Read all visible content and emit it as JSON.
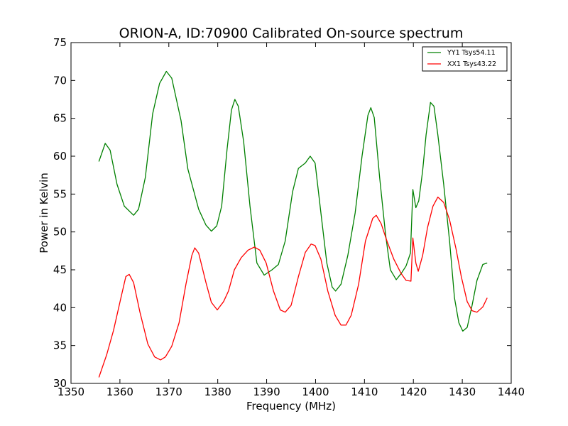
{
  "chart_data": {
    "type": "line",
    "title": "ORION-A, ID:70900 Calibrated On-source spectrum",
    "xlabel": "Frequency (MHz)",
    "ylabel": "Power in Kelvin",
    "xlim": [
      1350,
      1440
    ],
    "ylim": [
      30,
      75
    ],
    "xticks": [
      1350,
      1360,
      1370,
      1380,
      1390,
      1400,
      1410,
      1420,
      1430,
      1440
    ],
    "yticks": [
      30,
      35,
      40,
      45,
      50,
      55,
      60,
      65,
      70,
      75
    ],
    "grid": false,
    "legend_position": "top-right",
    "series": [
      {
        "name": "YY1 Tsys54.11",
        "color": "#008000",
        "points": [
          [
            1355.7,
            59.3
          ],
          [
            1357.0,
            61.7
          ],
          [
            1358.0,
            60.8
          ],
          [
            1359.4,
            56.3
          ],
          [
            1360.9,
            53.4
          ],
          [
            1362.8,
            52.2
          ],
          [
            1363.8,
            53.0
          ],
          [
            1365.2,
            57.2
          ],
          [
            1366.7,
            65.6
          ],
          [
            1368.1,
            69.6
          ],
          [
            1369.5,
            71.2
          ],
          [
            1370.6,
            70.3
          ],
          [
            1372.5,
            64.7
          ],
          [
            1373.9,
            58.3
          ],
          [
            1376.1,
            53.0
          ],
          [
            1377.6,
            50.9
          ],
          [
            1378.7,
            50.1
          ],
          [
            1379.8,
            50.8
          ],
          [
            1380.8,
            53.4
          ],
          [
            1381.9,
            60.9
          ],
          [
            1382.8,
            66.1
          ],
          [
            1383.5,
            67.5
          ],
          [
            1384.2,
            66.6
          ],
          [
            1385.3,
            61.9
          ],
          [
            1386.6,
            53.4
          ],
          [
            1388.0,
            45.9
          ],
          [
            1389.5,
            44.3
          ],
          [
            1391.1,
            45.0
          ],
          [
            1392.4,
            45.7
          ],
          [
            1393.8,
            48.8
          ],
          [
            1395.3,
            55.3
          ],
          [
            1396.5,
            58.4
          ],
          [
            1397.9,
            59.1
          ],
          [
            1398.9,
            60.0
          ],
          [
            1399.9,
            59.1
          ],
          [
            1401.1,
            52.5
          ],
          [
            1402.3,
            45.9
          ],
          [
            1403.4,
            42.7
          ],
          [
            1404.1,
            42.2
          ],
          [
            1405.2,
            43.1
          ],
          [
            1406.6,
            46.9
          ],
          [
            1408.1,
            52.5
          ],
          [
            1409.5,
            60.0
          ],
          [
            1410.7,
            65.4
          ],
          [
            1411.3,
            66.4
          ],
          [
            1412.0,
            65.1
          ],
          [
            1413.1,
            57.2
          ],
          [
            1414.3,
            49.7
          ],
          [
            1415.3,
            45.0
          ],
          [
            1416.5,
            43.7
          ],
          [
            1417.5,
            44.5
          ],
          [
            1418.5,
            45.5
          ],
          [
            1419.4,
            47.2
          ],
          [
            1419.9,
            55.6
          ],
          [
            1420.5,
            53.2
          ],
          [
            1421.1,
            54.1
          ],
          [
            1421.9,
            58.1
          ],
          [
            1422.6,
            62.8
          ],
          [
            1423.5,
            67.1
          ],
          [
            1424.2,
            66.6
          ],
          [
            1425.0,
            62.8
          ],
          [
            1426.2,
            56.3
          ],
          [
            1427.4,
            48.8
          ],
          [
            1428.4,
            41.3
          ],
          [
            1429.3,
            38.0
          ],
          [
            1430.1,
            36.9
          ],
          [
            1431.0,
            37.4
          ],
          [
            1432.0,
            40.3
          ],
          [
            1433.0,
            43.6
          ],
          [
            1434.2,
            45.7
          ],
          [
            1435.1,
            45.9
          ]
        ]
      },
      {
        "name": "XX1 Tsys43.22",
        "color": "#ff0000",
        "points": [
          [
            1355.7,
            30.8
          ],
          [
            1357.3,
            33.8
          ],
          [
            1358.7,
            37.0
          ],
          [
            1360.2,
            41.3
          ],
          [
            1361.2,
            44.1
          ],
          [
            1361.9,
            44.4
          ],
          [
            1362.8,
            43.3
          ],
          [
            1364.1,
            39.4
          ],
          [
            1365.7,
            35.2
          ],
          [
            1367.1,
            33.5
          ],
          [
            1368.3,
            33.1
          ],
          [
            1369.3,
            33.5
          ],
          [
            1370.6,
            34.9
          ],
          [
            1372.1,
            38.0
          ],
          [
            1373.5,
            43.1
          ],
          [
            1374.7,
            46.9
          ],
          [
            1375.3,
            47.9
          ],
          [
            1376.1,
            47.2
          ],
          [
            1377.6,
            43.3
          ],
          [
            1378.7,
            40.7
          ],
          [
            1379.9,
            39.7
          ],
          [
            1381.2,
            40.8
          ],
          [
            1382.2,
            42.2
          ],
          [
            1383.4,
            45.0
          ],
          [
            1384.8,
            46.6
          ],
          [
            1386.2,
            47.6
          ],
          [
            1387.5,
            48.0
          ],
          [
            1388.6,
            47.6
          ],
          [
            1389.9,
            45.9
          ],
          [
            1391.4,
            42.2
          ],
          [
            1392.8,
            39.7
          ],
          [
            1393.8,
            39.4
          ],
          [
            1395.0,
            40.3
          ],
          [
            1396.5,
            44.1
          ],
          [
            1397.9,
            47.3
          ],
          [
            1399.1,
            48.4
          ],
          [
            1399.9,
            48.2
          ],
          [
            1401.1,
            46.4
          ],
          [
            1402.5,
            42.2
          ],
          [
            1404.0,
            39.0
          ],
          [
            1405.2,
            37.7
          ],
          [
            1406.2,
            37.7
          ],
          [
            1407.3,
            39.0
          ],
          [
            1408.8,
            43.1
          ],
          [
            1410.2,
            48.8
          ],
          [
            1411.7,
            51.8
          ],
          [
            1412.4,
            52.2
          ],
          [
            1413.4,
            51.1
          ],
          [
            1414.6,
            48.8
          ],
          [
            1416.0,
            46.4
          ],
          [
            1417.5,
            44.5
          ],
          [
            1418.5,
            43.6
          ],
          [
            1419.5,
            43.5
          ],
          [
            1419.9,
            49.2
          ],
          [
            1420.5,
            45.9
          ],
          [
            1421.0,
            44.8
          ],
          [
            1421.9,
            46.9
          ],
          [
            1422.9,
            50.6
          ],
          [
            1424.0,
            53.4
          ],
          [
            1425.0,
            54.6
          ],
          [
            1426.2,
            53.9
          ],
          [
            1427.4,
            51.6
          ],
          [
            1428.7,
            47.8
          ],
          [
            1429.8,
            44.1
          ],
          [
            1431.0,
            40.8
          ],
          [
            1432.0,
            39.6
          ],
          [
            1433.0,
            39.4
          ],
          [
            1434.2,
            40.1
          ],
          [
            1435.1,
            41.3
          ]
        ]
      }
    ]
  }
}
